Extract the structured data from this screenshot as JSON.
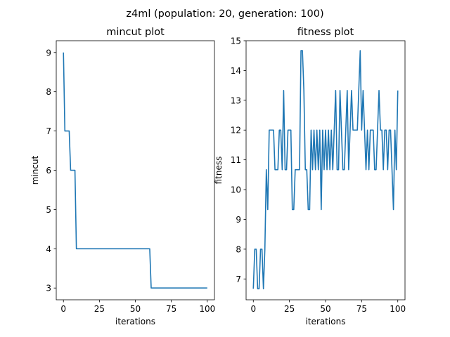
{
  "figure": {
    "suptitle": "z4ml (population: 20, generation: 100)"
  },
  "chart_data": [
    {
      "type": "line",
      "title": "mincut plot",
      "xlabel": "iterations",
      "ylabel": "mincut",
      "xlim": [
        -5,
        105
      ],
      "ylim": [
        2.7,
        9.3
      ],
      "xticks": [
        0,
        25,
        50,
        75,
        100
      ],
      "yticks": [
        3,
        4,
        5,
        6,
        7,
        8,
        9
      ],
      "xtick_labels": [
        "0",
        "25",
        "50",
        "75",
        "100"
      ],
      "ytick_labels": [
        "3",
        "4",
        "5",
        "6",
        "7",
        "8",
        "9"
      ],
      "grid": false,
      "color": "#1f77b4",
      "x": [
        0,
        1,
        2,
        3,
        4,
        5,
        6,
        7,
        8,
        9,
        10,
        60,
        61,
        62,
        100
      ],
      "y": [
        9,
        7,
        7,
        7,
        7,
        6,
        6,
        6,
        6,
        4,
        4,
        4,
        3,
        3,
        3
      ]
    },
    {
      "type": "line",
      "title": "fitness plot",
      "xlabel": "iterations",
      "ylabel": "fitness",
      "xlim": [
        -5,
        105
      ],
      "ylim": [
        6.3,
        15.0
      ],
      "xticks": [
        0,
        25,
        50,
        75,
        100
      ],
      "yticks": [
        7,
        8,
        9,
        10,
        11,
        12,
        13,
        14,
        15
      ],
      "xtick_labels": [
        "0",
        "25",
        "50",
        "75",
        "100"
      ],
      "ytick_labels": [
        "7",
        "8",
        "9",
        "10",
        "11",
        "12",
        "13",
        "14",
        "15"
      ],
      "grid": false,
      "color": "#1f77b4",
      "x": [
        0,
        1,
        2,
        3,
        4,
        5,
        6,
        7,
        8,
        9,
        10,
        11,
        12,
        13,
        14,
        15,
        16,
        17,
        18,
        19,
        20,
        21,
        22,
        23,
        24,
        25,
        26,
        27,
        28,
        29,
        30,
        31,
        32,
        33,
        34,
        35,
        36,
        37,
        38,
        39,
        40,
        41,
        42,
        43,
        44,
        45,
        46,
        47,
        48,
        49,
        50,
        51,
        52,
        53,
        54,
        55,
        56,
        57,
        58,
        59,
        60,
        61,
        62,
        63,
        64,
        65,
        66,
        67,
        68,
        69,
        70,
        71,
        72,
        73,
        74,
        75,
        76,
        77,
        78,
        79,
        80,
        81,
        82,
        83,
        84,
        85,
        86,
        87,
        88,
        89,
        90,
        91,
        92,
        93,
        94,
        95,
        96,
        97,
        98,
        99,
        100
      ],
      "y": [
        6.67,
        8,
        8,
        6.67,
        6.67,
        8,
        8,
        6.67,
        8,
        10.67,
        9.33,
        12,
        12,
        12,
        12,
        10.67,
        10.67,
        10.67,
        12,
        12,
        10.67,
        13.33,
        10.67,
        10.67,
        12,
        12,
        12,
        9.33,
        9.33,
        10.67,
        10.67,
        10.67,
        10.67,
        14.67,
        14.67,
        13.33,
        10.67,
        10.67,
        9.33,
        9.33,
        12,
        10.67,
        12,
        10.67,
        12,
        10.67,
        12,
        9.33,
        12,
        10.67,
        12,
        10.67,
        12,
        10.67,
        12,
        10.67,
        12,
        13.33,
        10.67,
        10.67,
        13.33,
        12,
        10.67,
        10.67,
        12,
        13.33,
        10.67,
        12,
        13.33,
        12,
        12,
        12,
        12,
        13.33,
        14.67,
        12,
        13.33,
        12,
        10.67,
        12,
        10.67,
        12,
        12,
        12,
        10.67,
        10.67,
        12,
        13.33,
        12,
        12,
        10.67,
        12,
        12,
        10.67,
        12,
        12,
        10.67,
        9.33,
        12,
        10.67,
        13.33
      ]
    }
  ]
}
